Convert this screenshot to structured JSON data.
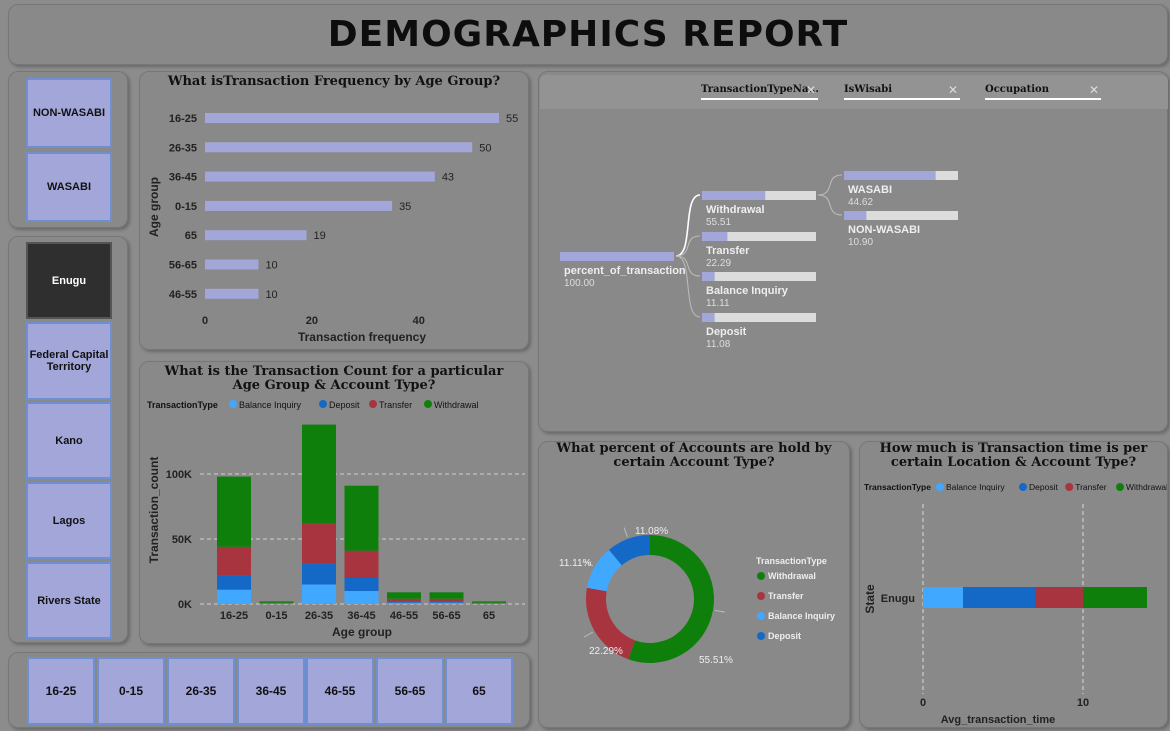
{
  "title": "DEMOGRAPHICS REPORT",
  "account_slicer": [
    "NON-WASABI",
    "WASABI"
  ],
  "location_slicer": {
    "items": [
      "Enugu",
      "Federal Capital Territory",
      "Kano",
      "Lagos",
      "Rivers State"
    ],
    "selected": "Enugu"
  },
  "age_slicer": [
    "16-25",
    "0-15",
    "26-35",
    "36-45",
    "46-55",
    "56-65",
    "65"
  ],
  "freq_chart": {
    "title": "What isTransaction Frequency by Age Group?",
    "chart_data": {
      "type": "bar",
      "orientation": "horizontal",
      "categories": [
        "16-25",
        "26-35",
        "36-45",
        "0-15",
        "65",
        "56-65",
        "46-55"
      ],
      "values": [
        55,
        50,
        43,
        35,
        19,
        10,
        10
      ],
      "xlabel": "Transaction frequency",
      "ylabel": "Age group",
      "xticks": [
        "0",
        "20",
        "40"
      ],
      "xlim": [
        0,
        58
      ],
      "color": "#a3a6d9"
    }
  },
  "count_chart": {
    "title": "What is the Transaction Count for a particular Age Group & Account Type?",
    "legend_title": "TransactionType",
    "chart_data": {
      "type": "bar",
      "stacked": true,
      "categories": [
        "16-25",
        "0-15",
        "26-35",
        "36-45",
        "46-55",
        "56-65",
        "65"
      ],
      "series": [
        {
          "name": "Balance Inquiry",
          "color": "#41a8ff",
          "values": [
            11000,
            300,
            15000,
            10000,
            1000,
            1000,
            300
          ]
        },
        {
          "name": "Deposit",
          "color": "#1469c6",
          "values": [
            11000,
            300,
            16000,
            10000,
            1000,
            1000,
            300
          ]
        },
        {
          "name": "Transfer",
          "color": "#a8343f",
          "values": [
            22000,
            300,
            31000,
            21000,
            2000,
            2000,
            300
          ]
        },
        {
          "name": "Withdrawal",
          "color": "#0f7f0c",
          "values": [
            54000,
            1100,
            76000,
            50000,
            5000,
            5000,
            1100
          ]
        }
      ],
      "xlabel": "Age group",
      "ylabel": "Transaction_count",
      "yticks": [
        "0K",
        "50K",
        "100K"
      ],
      "ylim": [
        0,
        140000
      ],
      "grid": true
    }
  },
  "tree": {
    "filters": [
      "TransactionTypeNa...",
      "IsWisabi",
      "Occupation"
    ],
    "root": {
      "label": "percent_of_transaction",
      "value": "100.00",
      "pct": 100
    },
    "level1": [
      {
        "label": "Withdrawal",
        "value": "55.51",
        "pct": 55.51
      },
      {
        "label": "Transfer",
        "value": "22.29",
        "pct": 22.29
      },
      {
        "label": "Balance Inquiry",
        "value": "11.11",
        "pct": 11.11
      },
      {
        "label": "Deposit",
        "value": "11.08",
        "pct": 11.08
      }
    ],
    "level2": [
      {
        "label": "WASABI",
        "value": "44.62",
        "pct": 80.4
      },
      {
        "label": "NON-WASABI",
        "value": "10.90",
        "pct": 19.6
      }
    ]
  },
  "donut_chart": {
    "title": "What percent of Accounts are hold by certain Account Type?",
    "legend_title": "TransactionType",
    "chart_data": {
      "type": "pie",
      "donut": true,
      "labels": [
        "Withdrawal",
        "Transfer",
        "Balance Inquiry",
        "Deposit"
      ],
      "values": [
        55.51,
        22.29,
        11.11,
        11.08
      ],
      "value_labels": [
        "55.51%",
        "22.29%",
        "11.11%",
        "11.08%"
      ],
      "colors": [
        "#0f7f0c",
        "#a8343f",
        "#41a8ff",
        "#1469c6"
      ]
    }
  },
  "time_chart": {
    "title": "How much is Transaction time is per certain Location & Account Type?",
    "legend_title": "TransactionType",
    "chart_data": {
      "type": "bar",
      "orientation": "horizontal",
      "stacked": true,
      "categories": [
        "Enugu"
      ],
      "series": [
        {
          "name": "Balance Inquiry",
          "color": "#41a8ff",
          "values": [
            2.5
          ]
        },
        {
          "name": "Deposit",
          "color": "#1469c6",
          "values": [
            4.5
          ]
        },
        {
          "name": "Transfer",
          "color": "#a8343f",
          "values": [
            3.0
          ]
        },
        {
          "name": "Withdrawal",
          "color": "#0f7f0c",
          "values": [
            4.0
          ]
        }
      ],
      "xlabel": "Avg_transaction_time",
      "ylabel": "State",
      "xticks": [
        "0",
        "10"
      ],
      "xlim": [
        0,
        14
      ],
      "grid": true
    }
  }
}
